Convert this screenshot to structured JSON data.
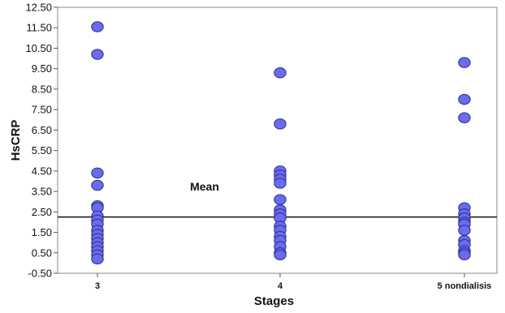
{
  "chart_data": {
    "type": "scatter",
    "title": "",
    "xlabel": "Stages",
    "ylabel": "HsCRP",
    "categories": [
      "3",
      "4",
      "5 nondialisis"
    ],
    "ylim": [
      -0.5,
      12.5
    ],
    "yticks": [
      -0.5,
      0.5,
      1.5,
      2.5,
      3.5,
      4.5,
      5.5,
      6.5,
      7.5,
      8.5,
      9.5,
      10.5,
      11.5,
      12.5
    ],
    "ytick_labels": [
      "-0.50",
      "0.50",
      "1.50",
      "2.50",
      "3.50",
      "4.50",
      "5.50",
      "6.50",
      "7.50",
      "8.50",
      "9.50",
      "10.50",
      "11.50",
      "12.50"
    ],
    "grid": false,
    "legend": "none",
    "marker_color": "#6b6bee",
    "marker_edge_color": "#2a2a8c",
    "reference_line": {
      "label": "Mean",
      "value": 2.25
    },
    "points": [
      {
        "category": "3",
        "values": [
          11.55,
          10.2,
          4.4,
          3.8,
          2.8,
          2.7,
          2.3,
          2.1,
          1.9,
          1.6,
          1.4,
          1.2,
          1.0,
          0.8,
          0.6,
          0.4,
          0.2
        ]
      },
      {
        "category": "4",
        "values": [
          9.3,
          6.8,
          4.5,
          4.3,
          4.1,
          3.9,
          3.1,
          2.6,
          2.4,
          2.2,
          1.8,
          1.6,
          1.3,
          1.1,
          0.8,
          0.5,
          0.4
        ]
      },
      {
        "category": "5 nondialisis",
        "values": [
          9.8,
          8.0,
          7.1,
          2.7,
          2.4,
          2.2,
          2.0,
          1.9,
          1.6,
          1.1,
          0.9,
          0.6,
          0.5,
          0.4
        ]
      }
    ]
  }
}
